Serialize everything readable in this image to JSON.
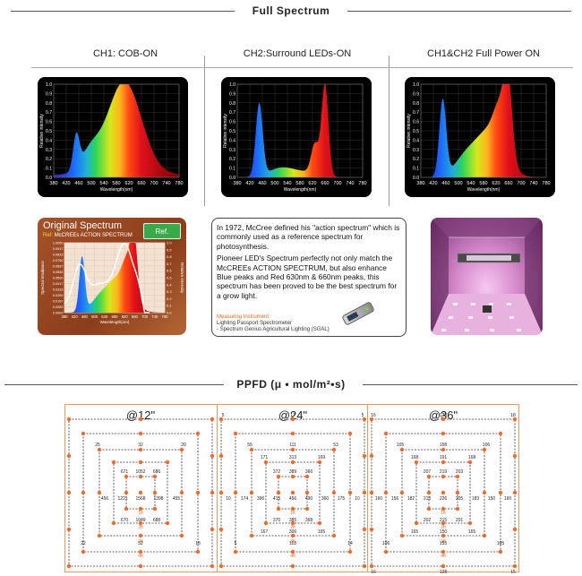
{
  "full_spectrum_title": "Full Spectrum",
  "columns": [
    {
      "heading": "CH1: COB-ON"
    },
    {
      "heading": "CH2:Surround LEDs-ON"
    },
    {
      "heading": "CH1&CH2 Full Power ON"
    }
  ],
  "spectrum_axis": {
    "ylabel": "Relative intensity",
    "xlabel": "Wavelength(nm)",
    "x_ticks": [
      "380",
      "420",
      "460",
      "500",
      "540",
      "580",
      "620",
      "660",
      "700",
      "740",
      "780"
    ],
    "y_ticks": [
      "0.0",
      "0.1",
      "0.2",
      "0.3",
      "0.4",
      "0.5",
      "0.6",
      "0.7",
      "0.8",
      "0.9",
      "1.0"
    ]
  },
  "original_spectrum": {
    "title": "Original Spectrum",
    "ref_prefix": "Ref:",
    "ref_text": "McCREEs ACTION SPECTRUM",
    "button_label": "Ref.",
    "ylabel_left": "Spectral Irradiance",
    "ylabel_right": "Relative intensity",
    "xlabel": "Wavelength(nm)",
    "x_ticks": [
      "380",
      "420",
      "460",
      "500",
      "540",
      "580",
      "620",
      "660",
      "700",
      "740",
      "780"
    ],
    "y_left_ticks": [
      "0.0000",
      "0.0083",
      "0.0167",
      "0.0250",
      "0.0333",
      "0.0417",
      "0.0500",
      "0.0583",
      "0.0667",
      "0.0750",
      "0.0833",
      "0.0917",
      "1.0000"
    ],
    "y_right_ticks": [
      "0.0",
      "0.1",
      "0.2",
      "0.3",
      "0.4",
      "0.5",
      "0.6",
      "0.7",
      "0.8",
      "0.9",
      "1.0"
    ]
  },
  "description": {
    "para1": "In 1972, McCree defined his \"action spectrum\" which is commonly used as a reference spectrum for photosynthesis.",
    "para2": "Pioneer LED's Spectrum perfectly not only match the McCREEs ACTION SPECTRUM, but also enhance Blue peaks and Red 630nm & 660nm peaks, this spectrum has been proved to be the best spectrum for a grow light.",
    "measuring_title": "Measuring Instrument:",
    "measuring_line1": "Lighting Passport Spectrometer",
    "measuring_line2": "- Spectrum Genius Agricultural Lighting (SGAL)"
  },
  "ppfd_title": "PPFD (μ • mol/m²•s)",
  "chart_data": {
    "type": "heatmap",
    "grids": [
      {
        "label": "@12\"",
        "ring_labels": [
          "1ft",
          "2ft",
          "3ft",
          "4ft"
        ],
        "top_values": [
          "25",
          "32",
          "20"
        ],
        "inner_top_row": [
          "671",
          "1052",
          "686"
        ],
        "center_row": [
          "456",
          "1221",
          "1568",
          "1398",
          "455"
        ],
        "inner_bottom_row": [
          "670",
          "1049",
          "688"
        ],
        "bottom_values": [
          "22",
          "52",
          "18"
        ]
      },
      {
        "label": "@24\"",
        "ring_labels": [
          "1ft",
          "2ft",
          "3ft",
          "4ft"
        ],
        "outer_top": [
          "5",
          "17",
          "5"
        ],
        "top_values": [
          "55",
          "111",
          "53"
        ],
        "mid_top": [
          "171",
          "313",
          "169"
        ],
        "inner_top_row": [
          "372",
          "389",
          "366"
        ],
        "center_row": [
          "10",
          "174",
          "396",
          "415",
          "456",
          "490",
          "360",
          "175",
          "10"
        ],
        "inner_bottom_row": [
          "370",
          "385",
          "368"
        ],
        "mid_bottom": [
          "167",
          "306",
          "165"
        ],
        "bottom_values": [
          "5",
          "118",
          "14"
        ]
      },
      {
        "label": "@36\"",
        "ring_labels": [
          "1ft",
          "2ft",
          "3ft",
          "4ft"
        ],
        "outer_top": [
          "16",
          "128",
          "18"
        ],
        "top_values": [
          "105",
          "158",
          "106"
        ],
        "mid_top": [
          "168",
          "191",
          "168"
        ],
        "inner_top_row": [
          "207",
          "219",
          "203"
        ],
        "center_row": [
          "160",
          "156",
          "182",
          "213",
          "226",
          "205",
          "183",
          "150",
          "160"
        ],
        "inner_bottom_row": [
          "202",
          "215",
          "201"
        ],
        "mid_bottom": [
          "165",
          "150",
          "165"
        ],
        "bottom_values": [
          "106",
          "155",
          "105"
        ],
        "outer_bottom": [
          "16",
          "128",
          "15"
        ]
      }
    ]
  }
}
